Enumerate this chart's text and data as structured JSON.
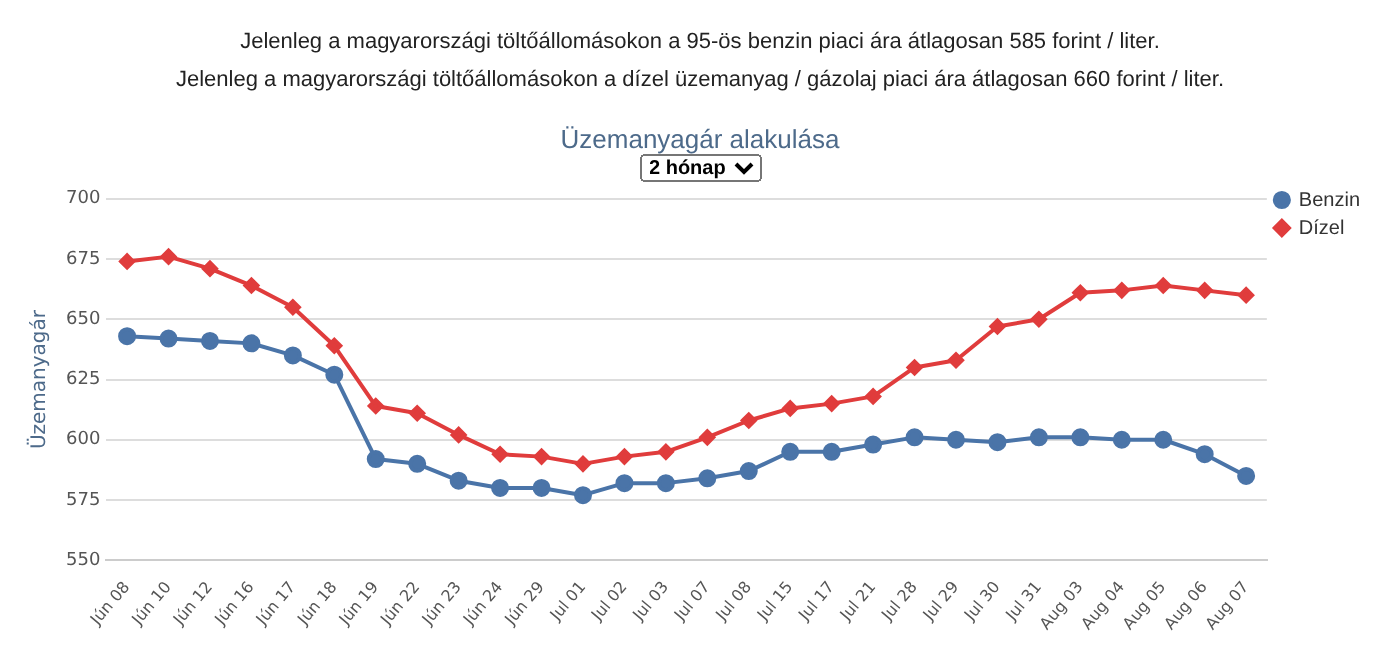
{
  "chart_data": {
    "type": "line",
    "title": "Üzemanyagár alakulása",
    "subtitle": "2 hónap",
    "annotations": [
      "Jelenleg a magyarországi töltőállomásokon a 95-ös benzin piaci ára átlagosan 585 forint / liter.",
      "Jelenleg a magyarországi töltőállomásokon a dízel üzemanyag / gázolaj piaci ára átlagosan 660 forint / liter."
    ],
    "ylabel": "Üzemanyagár",
    "categories": [
      "Jún 08",
      "Jún 10",
      "Jún 12",
      "Jún 16",
      "Jún 17",
      "Jún 18",
      "Jún 19",
      "Jún 22",
      "Jún 23",
      "Jún 24",
      "Jún 29",
      "Jul 01",
      "Jul 02",
      "Jul 03",
      "Jul 07",
      "Jul 08",
      "Jul 15",
      "Jul 17",
      "Jul 21",
      "Jul 28",
      "Jul 29",
      "Jul 30",
      "Jul 31",
      "Aug 03",
      "Aug 04",
      "Aug 05",
      "Aug 06",
      "Aug 07"
    ],
    "series": [
      {
        "name": "Benzin",
        "color": "#4a74a8",
        "marker": "circle",
        "values": [
          643,
          642,
          641,
          640,
          635,
          627,
          592,
          590,
          583,
          580,
          580,
          577,
          582,
          582,
          584,
          587,
          595,
          595,
          598,
          601,
          600,
          599,
          601,
          601,
          600,
          600,
          594,
          585
        ]
      },
      {
        "name": "Dízel",
        "color": "#e03c3c",
        "marker": "diamond",
        "values": [
          674,
          676,
          671,
          664,
          655,
          639,
          614,
          611,
          602,
          594,
          593,
          590,
          593,
          595,
          601,
          608,
          613,
          615,
          618,
          630,
          633,
          647,
          650,
          661,
          662,
          664,
          662,
          660
        ]
      }
    ],
    "ylim": [
      550,
      700
    ],
    "yticks": [
      550,
      575,
      600,
      625,
      650,
      675,
      700
    ],
    "grid": "y",
    "legend": "top right"
  }
}
